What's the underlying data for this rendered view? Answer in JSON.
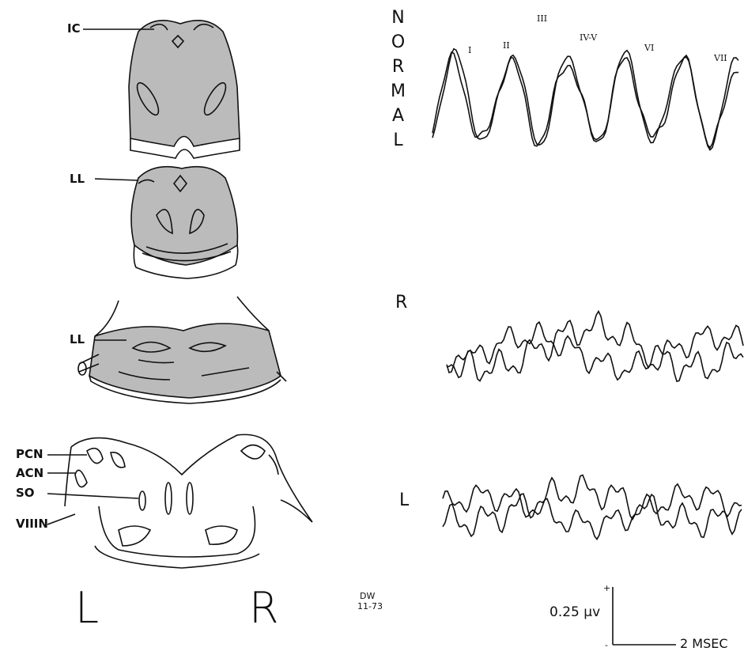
{
  "brain_sections": {
    "labels": [
      "IC",
      "LL",
      "LL",
      "PCN",
      "ACN",
      "SO",
      "VIIIN"
    ],
    "side_labels": [
      "L",
      "R"
    ]
  },
  "traces": {
    "normal": {
      "title": "NORMAL",
      "peaks": [
        "I",
        "II",
        "III",
        "IV-V",
        "VI",
        "VII"
      ]
    },
    "right": {
      "title": "R"
    },
    "left": {
      "title": "L"
    }
  },
  "signature": [
    "DW",
    "11-73"
  ],
  "scale": {
    "plus": "+",
    "amplitude": "0.25 μv",
    "minus": "-",
    "time": "2 MSEC"
  }
}
